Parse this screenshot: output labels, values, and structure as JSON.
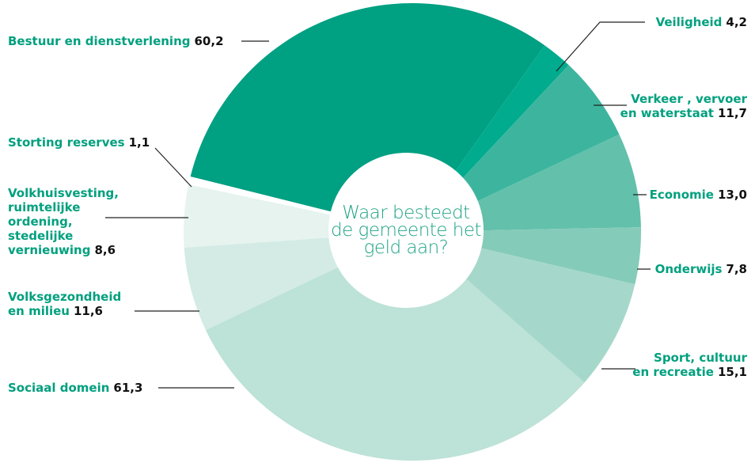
{
  "chart_data": {
    "type": "donut",
    "center_text": "Waar besteedt\nde gemeente het\ngeld aan?",
    "categories": [
      "Bestuur en dienstverlening",
      "Veiligheid",
      "Verkeer , vervoer\nen waterstaat",
      "Economie",
      "Onderwijs",
      "Sport, cultuur\nen recreatie",
      "Sociaal domein",
      "Volksgezondheid\nen milieu",
      "Volkhuisvesting,\nruimtelijke\nordening,\nstedelijke\nvernieuwing",
      "Storting reserves"
    ],
    "values": [
      60.2,
      4.2,
      11.7,
      13.0,
      7.8,
      15.1,
      61.3,
      11.6,
      8.6,
      1.1
    ],
    "value_labels": [
      "60,2",
      "4,2",
      "11,7",
      "13,0",
      "7,8",
      "15,1",
      "61,3",
      "11,6",
      "8,6",
      "1,1"
    ],
    "colors": [
      "#00a082",
      "#00ab8e",
      "#3db59e",
      "#62c0ab",
      "#85cbb9",
      "#a5d8ca",
      "#bde2d7",
      "#d3ebe4",
      "#e6f3ef",
      "#ffffff"
    ]
  }
}
